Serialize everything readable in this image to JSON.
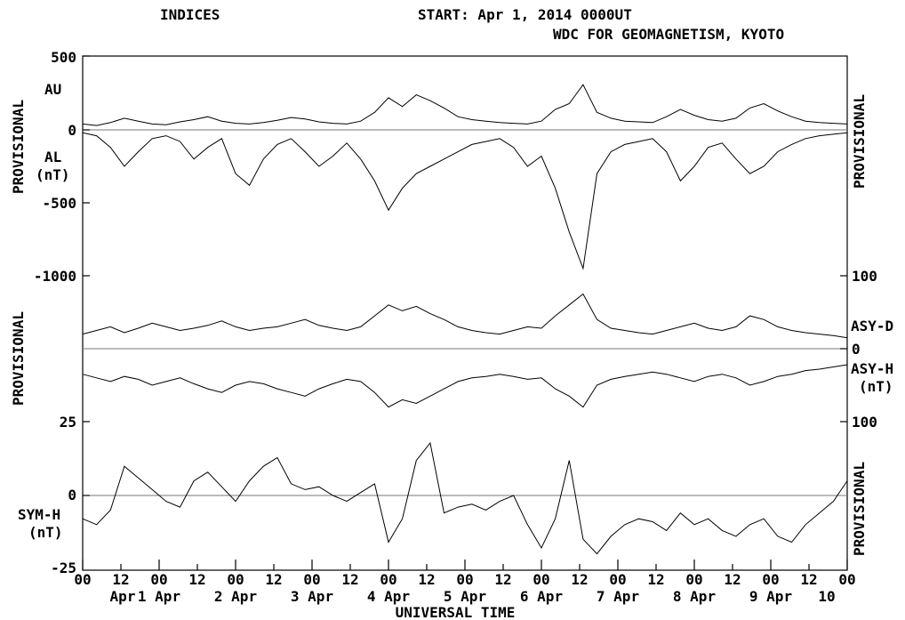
{
  "header": {
    "title": "INDICES",
    "start_label": "START: Apr  1, 2014  0000UT",
    "source": "WDC FOR GEOMAGNETISM, KYOTO"
  },
  "chart_data": [
    {
      "type": "line",
      "panel": "AU/AL",
      "y_ticks": [
        "500",
        "0",
        "-500",
        "-1000"
      ],
      "ylim": [
        -1000,
        500
      ],
      "labels": {
        "upper": "AU",
        "lower": "AL",
        "unit": "(nT)",
        "side": "PROVISIONAL"
      },
      "series": [
        {
          "name": "AU",
          "values": [
            40,
            30,
            50,
            80,
            60,
            40,
            35,
            55,
            70,
            90,
            60,
            45,
            40,
            50,
            65,
            85,
            75,
            55,
            45,
            40,
            60,
            120,
            220,
            160,
            240,
            200,
            150,
            90,
            70,
            60,
            50,
            45,
            40,
            60,
            140,
            180,
            310,
            120,
            80,
            60,
            55,
            50,
            90,
            140,
            100,
            70,
            60,
            80,
            150,
            180,
            130,
            90,
            60,
            50,
            45,
            40
          ]
        },
        {
          "name": "AL",
          "values": [
            -20,
            -40,
            -120,
            -250,
            -150,
            -60,
            -40,
            -80,
            -200,
            -120,
            -60,
            -300,
            -380,
            -200,
            -100,
            -60,
            -150,
            -250,
            -180,
            -90,
            -200,
            -350,
            -550,
            -400,
            -300,
            -250,
            -200,
            -150,
            -100,
            -80,
            -60,
            -120,
            -250,
            -180,
            -400,
            -700,
            -950,
            -300,
            -150,
            -100,
            -80,
            -60,
            -150,
            -350,
            -250,
            -120,
            -90,
            -200,
            -300,
            -250,
            -150,
            -100,
            -60,
            -40,
            -30,
            -20
          ]
        }
      ]
    },
    {
      "type": "line",
      "panel": "ASY",
      "y_ticks": [
        "100",
        "0",
        "100"
      ],
      "labels": {
        "upper": "ASY-D",
        "lower": "ASY-H",
        "unit": "(nT)",
        "zero": "0",
        "side": "PROVISIONAL"
      },
      "series": [
        {
          "name": "ASY-D",
          "values": [
            20,
            25,
            30,
            22,
            28,
            35,
            30,
            25,
            28,
            32,
            38,
            30,
            25,
            28,
            30,
            35,
            40,
            32,
            28,
            25,
            30,
            45,
            60,
            52,
            58,
            48,
            40,
            30,
            25,
            22,
            20,
            25,
            30,
            28,
            45,
            60,
            75,
            40,
            28,
            25,
            22,
            20,
            25,
            30,
            35,
            28,
            25,
            30,
            45,
            40,
            30,
            25,
            22,
            20,
            18,
            15
          ]
        },
        {
          "name": "ASY-H",
          "values": [
            35,
            40,
            45,
            38,
            42,
            50,
            45,
            40,
            48,
            55,
            60,
            50,
            45,
            48,
            55,
            60,
            65,
            55,
            48,
            42,
            45,
            60,
            80,
            70,
            75,
            65,
            55,
            45,
            40,
            38,
            35,
            38,
            42,
            40,
            55,
            65,
            80,
            50,
            42,
            38,
            35,
            32,
            35,
            40,
            45,
            38,
            35,
            40,
            50,
            45,
            38,
            35,
            30,
            28,
            25,
            22
          ]
        }
      ]
    },
    {
      "type": "line",
      "panel": "SYM-H",
      "y_ticks": [
        "25",
        "0",
        "-25"
      ],
      "ylim": [
        -25,
        25
      ],
      "labels": {
        "name": "SYM-H",
        "unit": "(nT)",
        "side": "PROVISIONAL"
      },
      "series": [
        {
          "name": "SYM-H",
          "values": [
            -8,
            -10,
            -5,
            10,
            6,
            2,
            -2,
            -4,
            5,
            8,
            3,
            -2,
            5,
            10,
            13,
            4,
            2,
            3,
            0,
            -2,
            1,
            4,
            -16,
            -8,
            12,
            18,
            -6,
            -4,
            -3,
            -5,
            -2,
            0,
            -10,
            -18,
            -8,
            12,
            -15,
            -20,
            -14,
            -10,
            -8,
            -9,
            -12,
            -6,
            -10,
            -8,
            -12,
            -14,
            -10,
            -8,
            -14,
            -16,
            -10,
            -6,
            -2,
            5
          ]
        }
      ]
    }
  ],
  "x_axis": {
    "hour_labels": [
      "00",
      "12",
      "00",
      "12",
      "00",
      "12",
      "00",
      "12",
      "00",
      "12",
      "00",
      "12",
      "00",
      "12",
      "00",
      "12",
      "00",
      "12",
      "00",
      "12",
      "00"
    ],
    "day_labels": [
      "Apr",
      "1 Apr",
      "2 Apr",
      "3 Apr",
      "4 Apr",
      "5 Apr",
      "6 Apr",
      "7 Apr",
      "8 Apr",
      "9 Apr",
      "10"
    ],
    "xlabel": "UNIVERSAL TIME"
  }
}
